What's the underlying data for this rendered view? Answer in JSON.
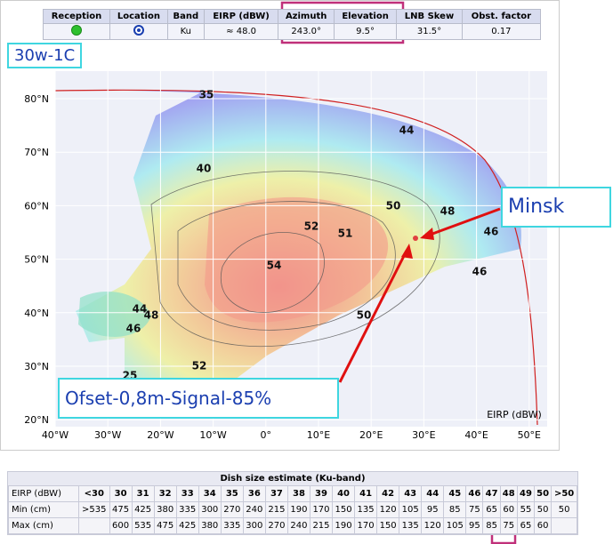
{
  "info_table": {
    "cells": [
      {
        "header": "Reception"
      },
      {
        "header": "Location"
      },
      {
        "header": "Band",
        "value": "Ku"
      },
      {
        "header": "EIRP (dBW)",
        "value": "≈ 48.0"
      },
      {
        "header": "Azimuth",
        "value": "243.0°"
      },
      {
        "header": "Elevation",
        "value": "9.5°"
      },
      {
        "header": "LNB Skew",
        "value": "31.5°"
      },
      {
        "header": "Obst. factor",
        "value": "0.17"
      }
    ]
  },
  "callouts": {
    "satellite": "30w-1C",
    "city": "Minsk",
    "setup": "Ofset-0,8m-Signal-85%"
  },
  "map": {
    "lat_labels": [
      "80°N",
      "70°N",
      "60°N",
      "50°N",
      "40°N",
      "30°N",
      "20°N"
    ],
    "lon_labels": [
      "40°W",
      "30°W",
      "20°W",
      "10°W",
      "0°",
      "10°E",
      "20°E",
      "30°E",
      "40°E",
      "50°E"
    ],
    "legend": "EIRP (dBW)",
    "contour_labels": [
      "35",
      "44",
      "40",
      "52",
      "51",
      "50",
      "48",
      "46",
      "54",
      "46",
      "44",
      "48",
      "46",
      "50",
      "52",
      "25"
    ]
  },
  "dish_table": {
    "title": "Dish size estimate (Ku-band)",
    "row_labels": [
      "EIRP (dBW)",
      "Min (cm)",
      "Max (cm)"
    ],
    "eirp": [
      "<30",
      "30",
      "31",
      "32",
      "33",
      "34",
      "35",
      "36",
      "37",
      "38",
      "39",
      "40",
      "41",
      "42",
      "43",
      "44",
      "45",
      "46",
      "47",
      "48",
      "49",
      "50",
      ">50"
    ],
    "min": [
      ">535",
      "475",
      "425",
      "380",
      "335",
      "300",
      "270",
      "240",
      "215",
      "190",
      "170",
      "150",
      "135",
      "120",
      "105",
      "95",
      "85",
      "75",
      "65",
      "60",
      "55",
      "50",
      "50"
    ],
    "max": [
      null,
      "600",
      "535",
      "475",
      "425",
      "380",
      "335",
      "300",
      "270",
      "240",
      "215",
      "190",
      "170",
      "150",
      "135",
      "120",
      "105",
      "95",
      "85",
      "75",
      "65",
      "60",
      null
    ]
  }
}
